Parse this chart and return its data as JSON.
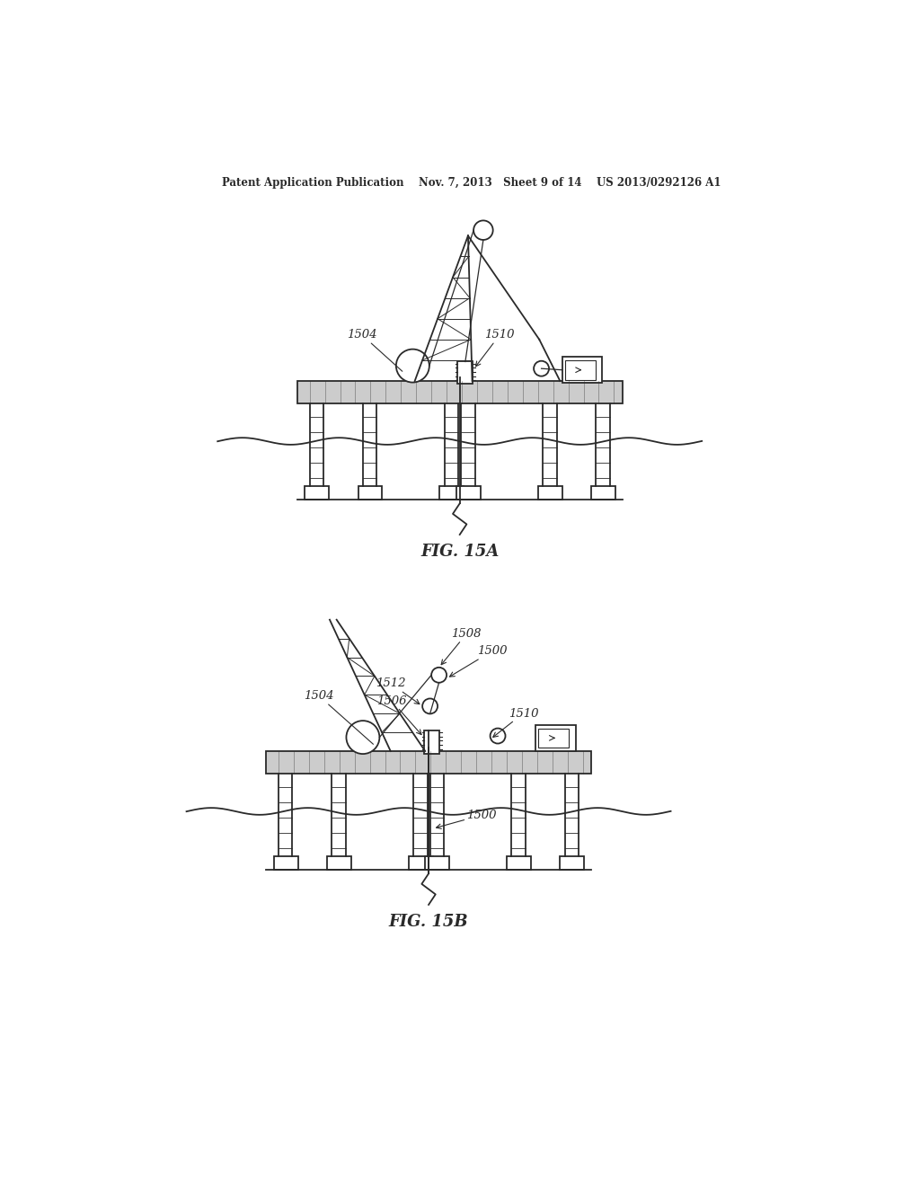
{
  "title_text": "Patent Application Publication    Nov. 7, 2013   Sheet 9 of 14    US 2013/0292126 A1",
  "fig_label_A": "FIG. 15A",
  "fig_label_B": "FIG. 15B",
  "background_color": "#ffffff",
  "line_color": "#2a2a2a"
}
